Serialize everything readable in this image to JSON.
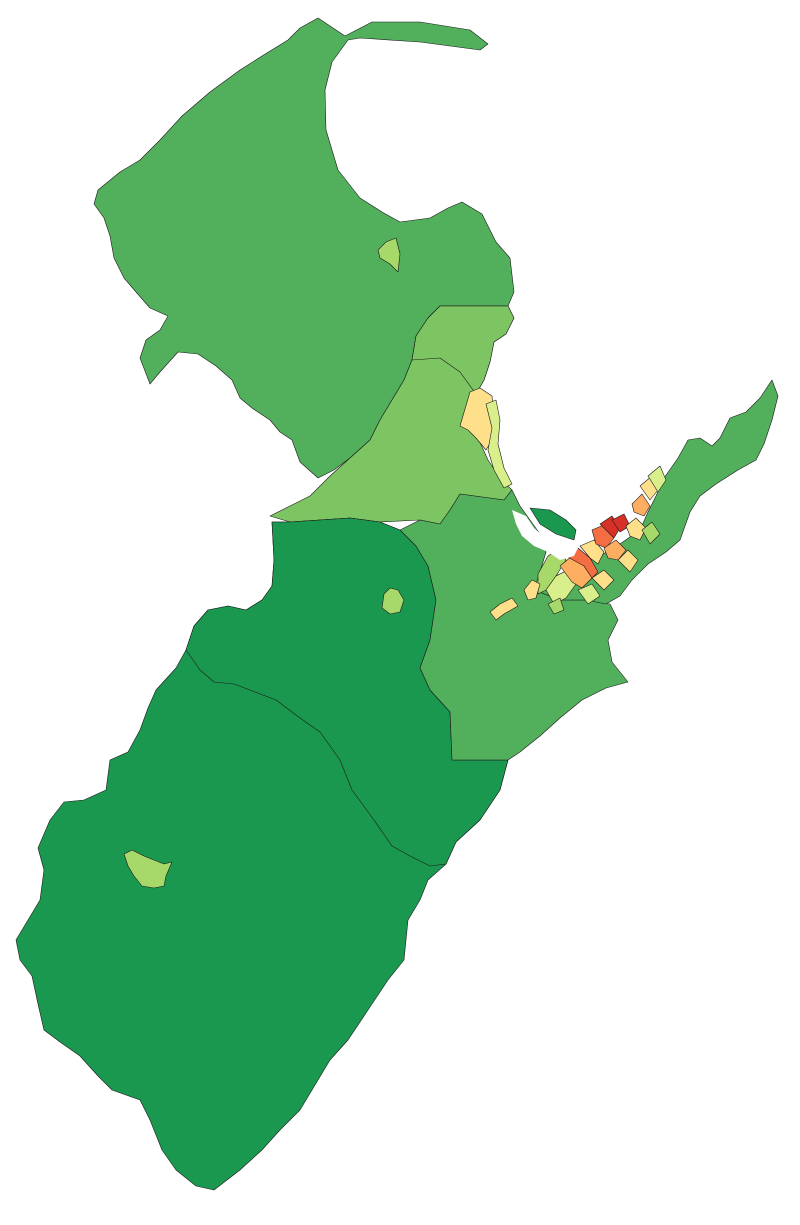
{
  "map": {
    "type": "choropleth",
    "colors": {
      "darkest_green": "#1a9850",
      "dark_green": "#52b05c",
      "mid_green": "#7dc563",
      "light_green": "#a6d96a",
      "yellow_green": "#d9ef8b",
      "pale_yellow": "#fee08b",
      "light_orange": "#fdae61",
      "orange": "#f46d43",
      "red": "#d73027",
      "background": "#ffffff"
    }
  }
}
